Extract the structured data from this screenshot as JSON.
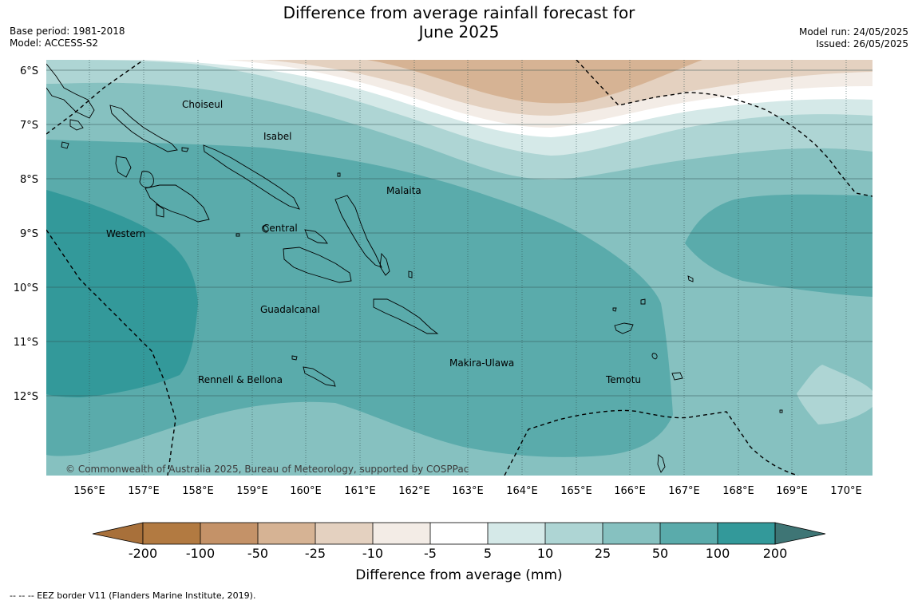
{
  "header": {
    "title_line1": "Difference from average rainfall forecast for",
    "title_line2": "June 2025",
    "base_period": "Base period: 1981-2018",
    "model": "Model: ACCESS-S2",
    "model_run": "Model run: 24/05/2025",
    "issued": "Issued: 26/05/2025"
  },
  "map": {
    "latitude_labels": [
      "6°S",
      "7°S",
      "8°S",
      "9°S",
      "10°S",
      "11°S",
      "12°S"
    ],
    "longitude_labels": [
      "156°E",
      "157°E",
      "158°E",
      "159°E",
      "160°E",
      "161°E",
      "162°E",
      "163°E",
      "164°E",
      "165°E",
      "166°E",
      "167°E",
      "168°E",
      "169°E",
      "170°E"
    ],
    "regions": [
      "Choiseul",
      "Isabel",
      "Malaita",
      "Western",
      "Central",
      "Guadalcanal",
      "Makira-Ulawa",
      "Rennell & Bellona",
      "Temotu"
    ],
    "copyright": "© Commonwealth of Australia 2025, Bureau of Meteorology, supported by COSPPac"
  },
  "colorbar": {
    "ticks": [
      "-200",
      "-100",
      "-50",
      "-25",
      "-10",
      "-5",
      "5",
      "10",
      "25",
      "50",
      "100",
      "200"
    ],
    "colors": [
      "#a8703a",
      "#b27a41",
      "#c49268",
      "#d6b394",
      "#e4d1c0",
      "#f3ece6",
      "#ffffff",
      "#d5e9e8",
      "#aed5d4",
      "#86c1c0",
      "#5aabab",
      "#33999a",
      "#3e7575"
    ],
    "title": "Difference from average (mm)"
  },
  "footnote": "--  --  -- EEZ border V11 (Flanders Marine Institute, 2019)."
}
